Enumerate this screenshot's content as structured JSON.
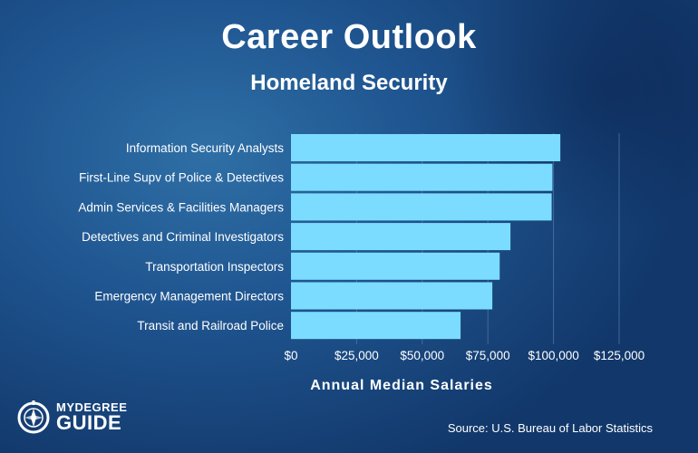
{
  "title": "Career Outlook",
  "subtitle": "Homeland Security",
  "source": "Source: U.S. Bureau of Labor Statistics",
  "brand": {
    "line1": "MYDEGREE",
    "line2": "GUIDE"
  },
  "colors": {
    "bar": "#7cdcff",
    "text": "#ffffff",
    "grid": "#5f86b5"
  },
  "chart_data": {
    "type": "bar",
    "orientation": "horizontal",
    "title": "Career Outlook",
    "subtitle": "Homeland Security",
    "xlabel": "Annual Median Salaries",
    "ylabel": "",
    "categories": [
      "Information Security Analysts",
      "First-Line Supv of Police & Detectives",
      "Admin Services & Facilities Managers",
      "Detectives and Criminal Investigators",
      "Transportation Inspectors",
      "Emergency Management Directors",
      "Transit and Railroad Police"
    ],
    "values": [
      102600,
      99600,
      99300,
      83600,
      79500,
      76700,
      64600
    ],
    "xlim": [
      0,
      125000
    ],
    "xticks": [
      0,
      25000,
      50000,
      75000,
      100000,
      125000
    ],
    "xtick_labels": [
      "$0",
      "$25,000",
      "$50,000",
      "$75,000",
      "$100,000",
      "$125,000"
    ],
    "grid": true,
    "legend": "none"
  }
}
